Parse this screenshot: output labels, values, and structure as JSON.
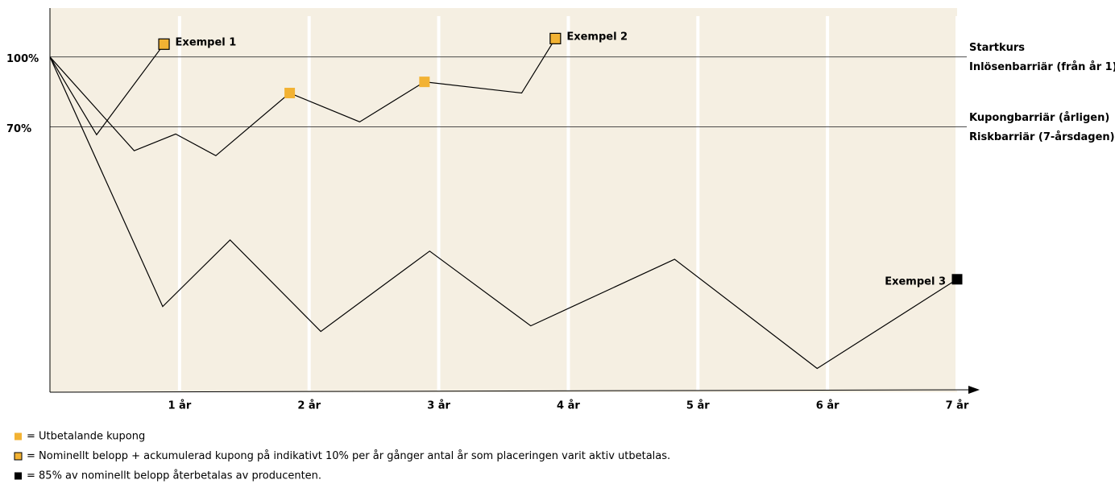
{
  "chart_data": {
    "type": "line",
    "xlim": [
      0,
      7
    ],
    "ylim": [
      -44,
      121
    ],
    "xticks": [
      {
        "value": 1,
        "label": "1 år"
      },
      {
        "value": 2,
        "label": "2 år"
      },
      {
        "value": 3,
        "label": "3 år"
      },
      {
        "value": 4,
        "label": "4 år"
      },
      {
        "value": 5,
        "label": "5 år"
      },
      {
        "value": 6,
        "label": "6 år"
      },
      {
        "value": 7,
        "label": "7 år"
      }
    ],
    "yticks": [
      {
        "value": 100,
        "label": "100%"
      },
      {
        "value": 70,
        "label": "70%"
      }
    ],
    "background": "#f5efe2",
    "annotations": [
      {
        "y": 100,
        "lines": [
          "Startkurs",
          "Inlösenbarriär (från år 1)"
        ]
      },
      {
        "y": 70,
        "lines": [
          "Kupongbarriär (årligen)",
          "Riskbarriär (7-årsdagen)"
        ]
      }
    ],
    "series": [
      {
        "name": "Exempel 1",
        "color": "#000000",
        "label_side": "right",
        "x": [
          0,
          0.36,
          0.88
        ],
        "values": [
          100,
          66.6,
          105.5
        ],
        "markers": [
          {
            "index": 2,
            "legend": 1
          }
        ]
      },
      {
        "name": "Exempel 2",
        "color": "#000000",
        "label_side": "right",
        "x": [
          0,
          0.65,
          0.97,
          1.28,
          1.85,
          2.39,
          2.89,
          3.64,
          3.9
        ],
        "values": [
          100,
          59.7,
          66.9,
          57.6,
          84.5,
          72.1,
          89.3,
          84.5,
          107.9
        ],
        "markers": [
          {
            "index": 4,
            "legend": 0
          },
          {
            "index": 6,
            "legend": 0
          },
          {
            "index": 8,
            "legend": 1
          }
        ]
      },
      {
        "name": "Exempel 3",
        "color": "#000000",
        "label_side": "left",
        "x": [
          0,
          0.87,
          1.39,
          2.09,
          2.93,
          3.71,
          4.82,
          5.92,
          7.0
        ],
        "values": [
          100,
          -7.2,
          21.4,
          -17.9,
          16.6,
          -15.5,
          13.1,
          -33.8,
          4.5
        ],
        "markers": [
          {
            "index": 8,
            "legend": 2
          }
        ]
      }
    ],
    "legend": [
      {
        "fill": "#f2b233",
        "stroke": "none",
        "text": "= Utbetalande kupong"
      },
      {
        "fill": "#f2b233",
        "stroke": "#000000",
        "text": "= Nominellt belopp + ackumulerad kupong på indikativt 10% per år gånger antal år som placeringen varit aktiv utbetalas."
      },
      {
        "fill": "#000000",
        "stroke": "none",
        "text": "= 85% av nominellt belopp återbetalas av producenten."
      }
    ]
  }
}
